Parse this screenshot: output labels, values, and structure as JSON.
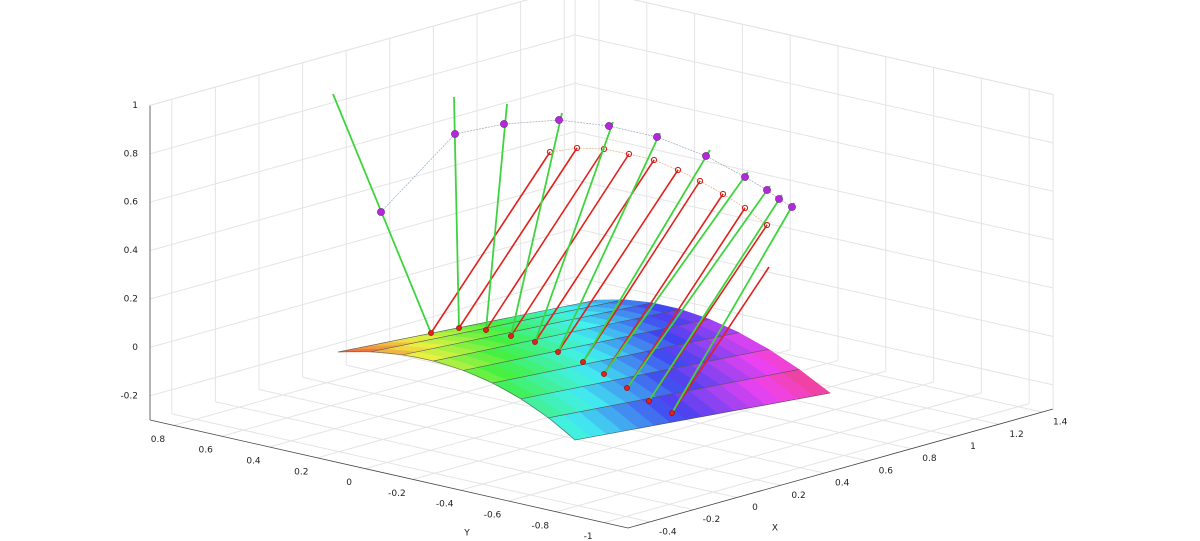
{
  "chart_data": {
    "type": "surface",
    "xlabel": "X",
    "ylabel": "Y",
    "xlim": [
      -0.5,
      1.45
    ],
    "ylim": [
      -1.1,
      0.9
    ],
    "zlim": [
      -0.3,
      1
    ],
    "xticks": [
      -0.4,
      -0.2,
      0,
      0.2,
      0.4,
      0.6,
      0.8,
      1,
      1.2,
      1.4
    ],
    "yticks": [
      -1,
      -0.8,
      -0.6,
      -0.4,
      -0.2,
      0,
      0.2,
      0.4,
      0.6,
      0.8
    ],
    "zticks": [
      -0.2,
      0,
      0.2,
      0.4,
      0.6,
      0.8,
      1
    ],
    "grid": true
  }
}
